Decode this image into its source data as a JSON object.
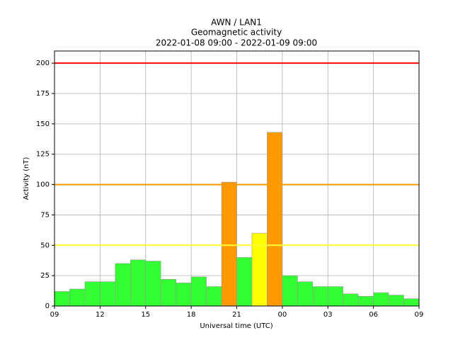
{
  "chart_data": {
    "type": "histogram",
    "title": "AWN / LAN1",
    "subtitle": "Geomagnetic activity",
    "date_range": "2022-01-08 09:00 - 2022-01-09 09:00",
    "xlabel": "Universal time (UTC)",
    "ylabel": "Activity (nT)",
    "bins": [
      0,
      1,
      2,
      3,
      4,
      5,
      6,
      7,
      8,
      9,
      10,
      11,
      12,
      13,
      14,
      15,
      16,
      17,
      18,
      19,
      20,
      21,
      22,
      23,
      24
    ],
    "values": [
      12,
      14,
      20,
      20,
      35,
      38,
      37,
      22,
      19,
      24,
      16,
      102,
      40,
      60,
      143,
      25,
      20,
      16,
      16,
      10,
      8,
      11,
      9,
      6
    ],
    "colors": [
      "#33ff33",
      "#33ff33",
      "#33ff33",
      "#33ff33",
      "#33ff33",
      "#33ff33",
      "#33ff33",
      "#33ff33",
      "#33ff33",
      "#33ff33",
      "#33ff33",
      "#ff9900",
      "#33ff33",
      "#ffff00",
      "#ff9900",
      "#33ff33",
      "#33ff33",
      "#33ff33",
      "#33ff33",
      "#33ff33",
      "#33ff33",
      "#33ff33",
      "#33ff33",
      "#33ff33"
    ],
    "thresholds": [
      {
        "value": 50,
        "color": "#ffff33"
      },
      {
        "value": 100,
        "color": "#ff9900"
      },
      {
        "value": 200,
        "color": "#ff0000"
      }
    ],
    "xlim": [
      0,
      24
    ],
    "xticks": [
      {
        "value": 0,
        "label": "09"
      },
      {
        "value": 3,
        "label": "12"
      },
      {
        "value": 6,
        "label": "15"
      },
      {
        "value": 9,
        "label": "18"
      },
      {
        "value": 12,
        "label": "21"
      },
      {
        "value": 15,
        "label": "00"
      },
      {
        "value": 18,
        "label": "03"
      },
      {
        "value": 21,
        "label": "06"
      },
      {
        "value": 24,
        "label": "09"
      }
    ],
    "ylim": [
      0,
      210
    ],
    "yticks": [
      0,
      25,
      50,
      75,
      100,
      125,
      150,
      175,
      200
    ],
    "grid": true
  }
}
